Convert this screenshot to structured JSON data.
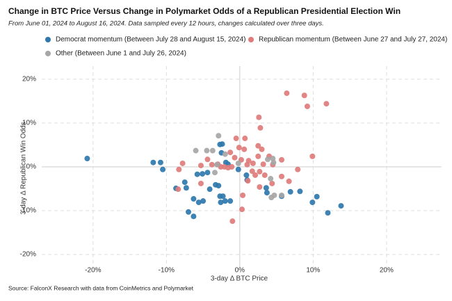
{
  "chart_data": {
    "type": "scatter",
    "title": "Change in BTC Price Versus Change in Polymarket Odds of a Republican Presidential Election Win",
    "subtitle": "From June 01, 2024 to August 16, 2024. Data sampled every 12 hours, changes calculated over three days.",
    "source": "Source: FalconX Research with data from CoinMetrics and Polymarket",
    "x_label": "3-day Δ BTC Price",
    "y_label": "3-day Δ Republican Win Odds",
    "xlim": [
      -27,
      27.5
    ],
    "ylim": [
      -23,
      23
    ],
    "xticks": [
      {
        "value": -20,
        "label": "-20%"
      },
      {
        "value": -10,
        "label": "-10%"
      },
      {
        "value": 0,
        "label": "0%"
      },
      {
        "value": 10,
        "label": "10%"
      },
      {
        "value": 20,
        "label": "20%"
      }
    ],
    "yticks": [
      {
        "value": -20,
        "label": "-20%"
      },
      {
        "value": -10,
        "label": "-10%"
      },
      {
        "value": 0,
        "label": "0%"
      },
      {
        "value": 10,
        "label": "10%"
      },
      {
        "value": 20,
        "label": "20%"
      }
    ],
    "grid": true,
    "series": [
      {
        "name": "Democrat momentum (Between July 28 and August 15, 2024)",
        "color": "#2e78ad",
        "x": [
          -20.8,
          -11.8,
          -10.8,
          -10.5,
          -7.5,
          -7.3,
          -8.7,
          -7.0,
          -6.3,
          -6.3,
          -5.6,
          -5.0,
          -5.8,
          -5.1,
          -4.4,
          -4.1,
          -3.3,
          -2.9,
          -2.7,
          -2.6,
          -2.0,
          -1.3,
          -2.7,
          -2.4,
          -2.5,
          -1.9,
          -1.6,
          -2.3,
          -0.2,
          0.9,
          1.0,
          3.6,
          3.7,
          5.7,
          6.9,
          8.2,
          9.9,
          10.5,
          12.0,
          13.8
        ],
        "values": [
          1.9,
          1.0,
          1.0,
          -0.6,
          -3.5,
          -4.8,
          -4.9,
          -10.3,
          -11.3,
          -7.3,
          -8.1,
          -7.8,
          -1.7,
          -1.6,
          -1.3,
          -5.1,
          -4.1,
          -4.3,
          -6.7,
          -8.1,
          -7.8,
          -7.8,
          5.1,
          5.2,
          3.2,
          1.0,
          0.6,
          -6.7,
          -0.6,
          -1.9,
          -3.0,
          -4.8,
          -5.9,
          -6.7,
          -5.7,
          -5.6,
          -8.1,
          -6.8,
          -10.5,
          -8.9
        ]
      },
      {
        "name": "Republican momentum (Between June 27 and July 27, 2024)",
        "color": "#e07b7b",
        "x": [
          6.4,
          8.8,
          9.2,
          11.8,
          2.6,
          2.8,
          0.7,
          -0.5,
          -0.1,
          0.6,
          -1.3,
          -0.7,
          2.5,
          3.0,
          4.0,
          5.7,
          2.5,
          1.8,
          3.2,
          4.5,
          1.0,
          0.2,
          1.2,
          -3.0,
          -2.6,
          -2.1,
          -1.6,
          -1.1,
          -4.4,
          -3.8,
          -5.3,
          -5.3,
          -8.4,
          -7.8,
          -8.3,
          1.7,
          2.1,
          2.7,
          3.4,
          1.1,
          2.7,
          0.4,
          0.3,
          -1.0,
          5.7,
          7.9,
          9.9,
          6.7,
          4.4
        ],
        "values": [
          16.8,
          16.3,
          13.8,
          14.4,
          11.3,
          8.9,
          6.5,
          6.5,
          4.4,
          4.0,
          3.3,
          2.1,
          4.8,
          4.0,
          2.4,
          1.6,
          2.4,
          0.8,
          0.6,
          0.5,
          0.5,
          1.6,
          1.4,
          0.6,
          0,
          0,
          -0.2,
          0,
          1.7,
          0.5,
          0.3,
          -3.8,
          -5.1,
          0.8,
          -0.6,
          -1.0,
          -1.9,
          -1.1,
          -1.9,
          -3.2,
          -4.6,
          -6.5,
          -9.7,
          -12.4,
          -2.2,
          -0.6,
          2.4,
          -3.3,
          -3.8
        ]
      },
      {
        "name": "Other (Between June 1 and July 26, 2024)",
        "color": "#a6a6a6",
        "x": [
          -6.0,
          -4.5,
          -3.7,
          -2.9,
          -2.0,
          -3.1,
          -0.2,
          3.8,
          4.5,
          4.6,
          4.2,
          4.3,
          4.7,
          5.7,
          -3.4
        ],
        "values": [
          3.7,
          3.7,
          3.7,
          7.1,
          2.9,
          0.5,
          0.8,
          1.7,
          1.9,
          1.0,
          -2.7,
          -7.0,
          -6.5,
          -6.5,
          -1.3
        ]
      }
    ]
  }
}
